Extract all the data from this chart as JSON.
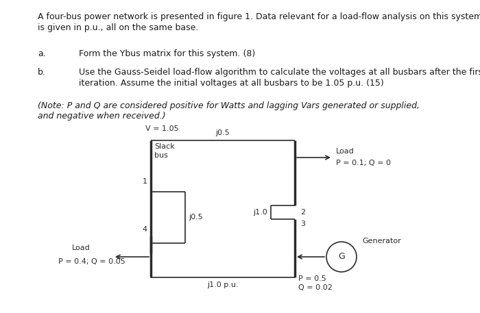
{
  "bg_color": "#ffffff",
  "text_color": "#1a1a1a",
  "line_color": "#2a2a2a",
  "title_line1": "A four-bus power network is presented in figure 1. Data relevant for a load-flow analysis on this system",
  "title_line2": "is given in p.u., all on the same base.",
  "label_a": "a.",
  "item_a": "Form the Ybus matrix for this system. (8)",
  "label_b": "b.",
  "item_b_line1": "Use the Gauss-Seidel load-flow algorithm to calculate the voltages at all busbars after the first",
  "item_b_line2": "iteration. Assume the initial voltages at all busbars to be 1.05 p.u. (15)",
  "note_line1": "(Note: P and Q are considered positive for Watts and lagging Vars generated or supplied,",
  "note_line2": "and negative when received.)",
  "v_label": "V = 1.05",
  "slack_label1": "Slack",
  "slack_label2": "bus",
  "bus1_label": "1",
  "bus2_label": "2",
  "bus3_label": "3",
  "bus4_label": "4",
  "branch12_label": "j0.5",
  "branch14_label": "j0.5",
  "branch23_label": "j1.0",
  "branch34_label": "j1.0 p.u.",
  "load_bus2_label": "Load",
  "load_bus2_pq": "P = 0.1; Q = 0",
  "load_bus4_label": "Load",
  "load_bus4_pq": "P = 0.4; Q = 0.05",
  "gen_label": "Generator",
  "gen_G": "G",
  "gen_p": "P = 0.5",
  "gen_q": "Q = 0.02",
  "font_size_main": 9.0,
  "font_size_circuit": 8.0
}
